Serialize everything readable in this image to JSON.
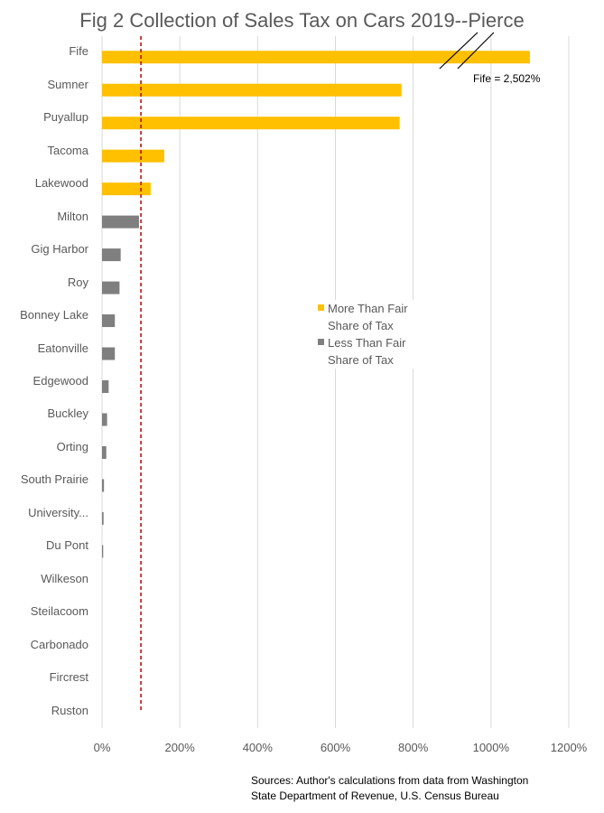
{
  "chart_data": {
    "type": "bar",
    "orientation": "horizontal",
    "title": "Fig 2 Collection of Sales Tax on Cars 2019--Pierce",
    "categories": [
      "Fife",
      "Sumner",
      "Puyallup",
      "Tacoma",
      "Lakewood",
      "Milton",
      "Gig Harbor",
      "Roy",
      "Bonney Lake",
      "Eatonville",
      "Edgewood",
      "Buckley",
      "Orting",
      "South Prairie",
      "University...",
      "Du Pont",
      "Wilkeson",
      "Steilacoom",
      "Carbonado",
      "Fircrest",
      "Ruston"
    ],
    "values": [
      2502,
      770,
      765,
      160,
      125,
      95,
      48,
      45,
      33,
      33,
      17,
      13,
      11,
      5,
      4,
      3,
      0,
      0,
      0,
      0,
      0
    ],
    "groups": [
      "more",
      "more",
      "more",
      "more",
      "more",
      "less",
      "less",
      "less",
      "less",
      "less",
      "less",
      "less",
      "less",
      "less",
      "less",
      "less",
      "less",
      "less",
      "less",
      "less",
      "less"
    ],
    "series": [
      {
        "name": "More Than Fair Share of Tax",
        "key": "more",
        "color": "#FFC000"
      },
      {
        "name": "Less Than Fair Share of Tax",
        "key": "less",
        "color": "#7F7F7F"
      }
    ],
    "xlim": [
      0,
      1200
    ],
    "xticks": [
      0,
      200,
      400,
      600,
      800,
      1000,
      1200
    ],
    "xtick_labels": [
      "0%",
      "200%",
      "400%",
      "600%",
      "800%",
      "1000%",
      "1200%"
    ],
    "reference_line": {
      "value": 100,
      "style": "dashed",
      "color": "#C00000"
    },
    "axis_break": {
      "category": "Fife",
      "display_cap": 1100
    },
    "annotation": "Fife = 2,502%",
    "grid": true,
    "legend_position": "center-right"
  },
  "source_note": {
    "line1": "Sources: Author's calculations from data from Washington",
    "line2": "State Department of Revenue, U.S. Census Bureau"
  }
}
